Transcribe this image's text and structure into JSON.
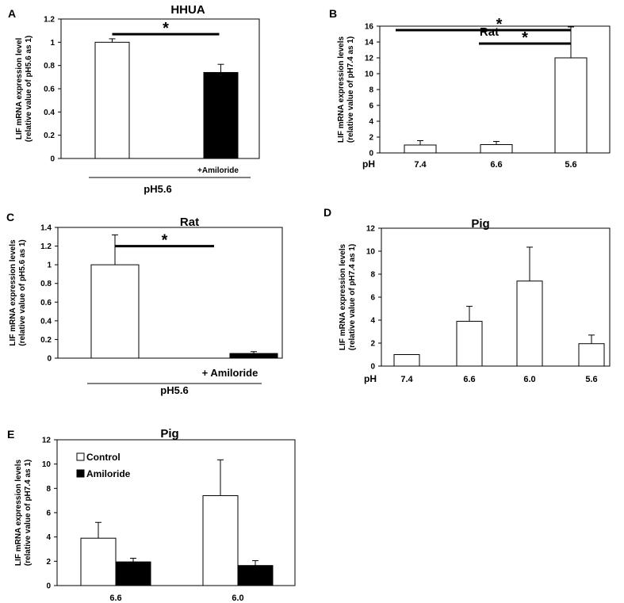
{
  "chart_data": [
    {
      "panel": "A",
      "type": "bar",
      "title": "HHUA",
      "ylabel": "LIF mRNA expression level",
      "ylabel2": "(relative value of pH5.6 as 1)",
      "ylim": [
        0,
        1.2
      ],
      "yticks": [
        0,
        0.2,
        0.4,
        0.6,
        0.8,
        1,
        1.2
      ],
      "categories": [
        "",
        "+Amiloride"
      ],
      "values": [
        1.0,
        0.74
      ],
      "errors": [
        0.03,
        0.07
      ],
      "fills": [
        "#ffffff",
        "#000000"
      ],
      "group_label": "pH5.6",
      "significance": [
        {
          "from": 0,
          "to": 1,
          "label": "*"
        }
      ]
    },
    {
      "panel": "B",
      "type": "bar",
      "title": "Rat",
      "ylabel": "LIF mRNA expression levels",
      "ylabel2": "(relative value of pH7.4 as 1)",
      "ylim": [
        0,
        16
      ],
      "yticks": [
        0,
        2,
        4,
        6,
        8,
        10,
        12,
        14,
        16
      ],
      "xprefix": "pH",
      "categories": [
        "7.4",
        "6.6",
        "5.6"
      ],
      "values": [
        1.0,
        1.05,
        12.0
      ],
      "errors": [
        0.55,
        0.4,
        3.9
      ],
      "fills": [
        "#ffffff",
        "#ffffff",
        "#ffffff"
      ],
      "significance": [
        {
          "from": 0,
          "to": 2,
          "label": "*"
        },
        {
          "from": 1,
          "to": 2,
          "label": "*"
        }
      ]
    },
    {
      "panel": "C",
      "type": "bar",
      "title": "Rat",
      "ylabel": "LIF mRNA expression levels",
      "ylabel2": "(relative value of pH5.6 as 1)",
      "ylim": [
        0,
        1.4
      ],
      "yticks": [
        0,
        0.2,
        0.4,
        0.6,
        0.8,
        1,
        1.2,
        1.4
      ],
      "categories": [
        "",
        "+ Amiloride"
      ],
      "values": [
        1.0,
        0.05
      ],
      "errors": [
        0.32,
        0.02
      ],
      "fills": [
        "#ffffff",
        "#000000"
      ],
      "group_label": "pH5.6",
      "significance": [
        {
          "from": 0,
          "to": 1,
          "label": "*"
        }
      ]
    },
    {
      "panel": "D",
      "type": "bar",
      "title": "Pig",
      "ylabel": "LIF mRNA expression levels",
      "ylabel2": "(relative value of pH7.4 as 1)",
      "ylim": [
        0,
        12
      ],
      "yticks": [
        0,
        2,
        4,
        6,
        8,
        10,
        12
      ],
      "xprefix": "pH",
      "categories": [
        "7.4",
        "6.6",
        "6.0",
        "5.6"
      ],
      "values": [
        1.0,
        3.9,
        7.4,
        1.95
      ],
      "errors": [
        0,
        1.3,
        2.95,
        0.75
      ],
      "fills": [
        "#ffffff",
        "#ffffff",
        "#ffffff",
        "#ffffff"
      ]
    },
    {
      "panel": "E",
      "type": "bar",
      "title": "Pig",
      "ylabel": "LIF mRNA expression levels",
      "ylabel2": "(relative value of pH7.4 as 1)",
      "ylim": [
        0,
        12
      ],
      "yticks": [
        0,
        2,
        4,
        6,
        8,
        10,
        12
      ],
      "categories": [
        "6.6",
        "6.0"
      ],
      "series": [
        {
          "name": "Control",
          "values": [
            3.9,
            7.4
          ],
          "errors": [
            1.3,
            2.95
          ],
          "fill": "#ffffff"
        },
        {
          "name": "Amiloride",
          "values": [
            1.95,
            1.65
          ],
          "errors": [
            0.3,
            0.4
          ],
          "fill": "#000000"
        }
      ],
      "legend_position": "top-left"
    }
  ]
}
